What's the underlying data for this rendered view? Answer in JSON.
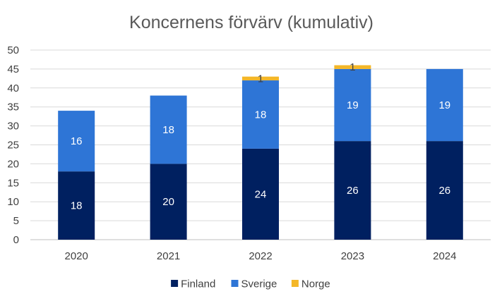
{
  "chart_data": {
    "type": "bar",
    "stacked": true,
    "title": "Koncernens förvärv (kumulativ)",
    "categories": [
      "2020",
      "2021",
      "2022",
      "2023",
      "2024"
    ],
    "series": [
      {
        "name": "Finland",
        "values": [
          18,
          20,
          24,
          26,
          26
        ],
        "color": "#002060",
        "label_color": "#ffffff"
      },
      {
        "name": "Sverige",
        "values": [
          16,
          18,
          18,
          19,
          19
        ],
        "color": "#2E75D6",
        "label_color": "#ffffff"
      },
      {
        "name": "Norge",
        "values": [
          0,
          0,
          1,
          1,
          0
        ],
        "color": "#F4B728",
        "label_color": "#404040"
      }
    ],
    "ylim": [
      0,
      50
    ],
    "yticks": [
      0,
      5,
      10,
      15,
      20,
      25,
      30,
      35,
      40,
      45,
      50
    ],
    "grid": true,
    "legend_position": "bottom"
  }
}
